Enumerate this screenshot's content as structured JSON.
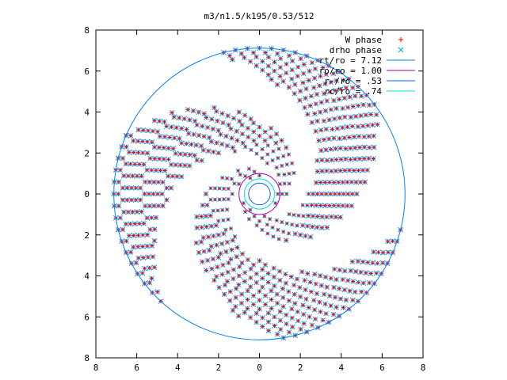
{
  "chart_data": {
    "type": "scatter",
    "title": "m3/n1.5/k195/0.53/512",
    "xlim": [
      -8,
      8
    ],
    "ylim": [
      -8,
      8
    ],
    "x_ticks": [
      "8",
      "6",
      "4",
      "2",
      "0",
      "2",
      "4",
      "6",
      "8"
    ],
    "y_ticks": [
      "8",
      "6",
      "4",
      "2",
      "0",
      "2",
      "4",
      "6",
      "8"
    ],
    "grid": false,
    "legend_position": "top-right",
    "spiral_arms": 3,
    "series": [
      {
        "name": "W phase",
        "marker": "+",
        "color": "#ff0000"
      },
      {
        "name": "drho phase",
        "marker": "x",
        "color": "#00a0ff"
      },
      {
        "name": "rt/ro = 7.12",
        "kind": "circle",
        "radius": 7.12,
        "color": "#0080ff"
      },
      {
        "name": "ro/ro = 1.00",
        "kind": "circle",
        "radius": 1.0,
        "color": "#a000a0"
      },
      {
        "name": "r-/ro = .53",
        "kind": "circle",
        "radius": 0.53,
        "color": "#0060ff"
      },
      {
        "name": "rc/ro = .74",
        "kind": "circle",
        "radius": 0.74,
        "color": "#00e0e0"
      }
    ]
  }
}
